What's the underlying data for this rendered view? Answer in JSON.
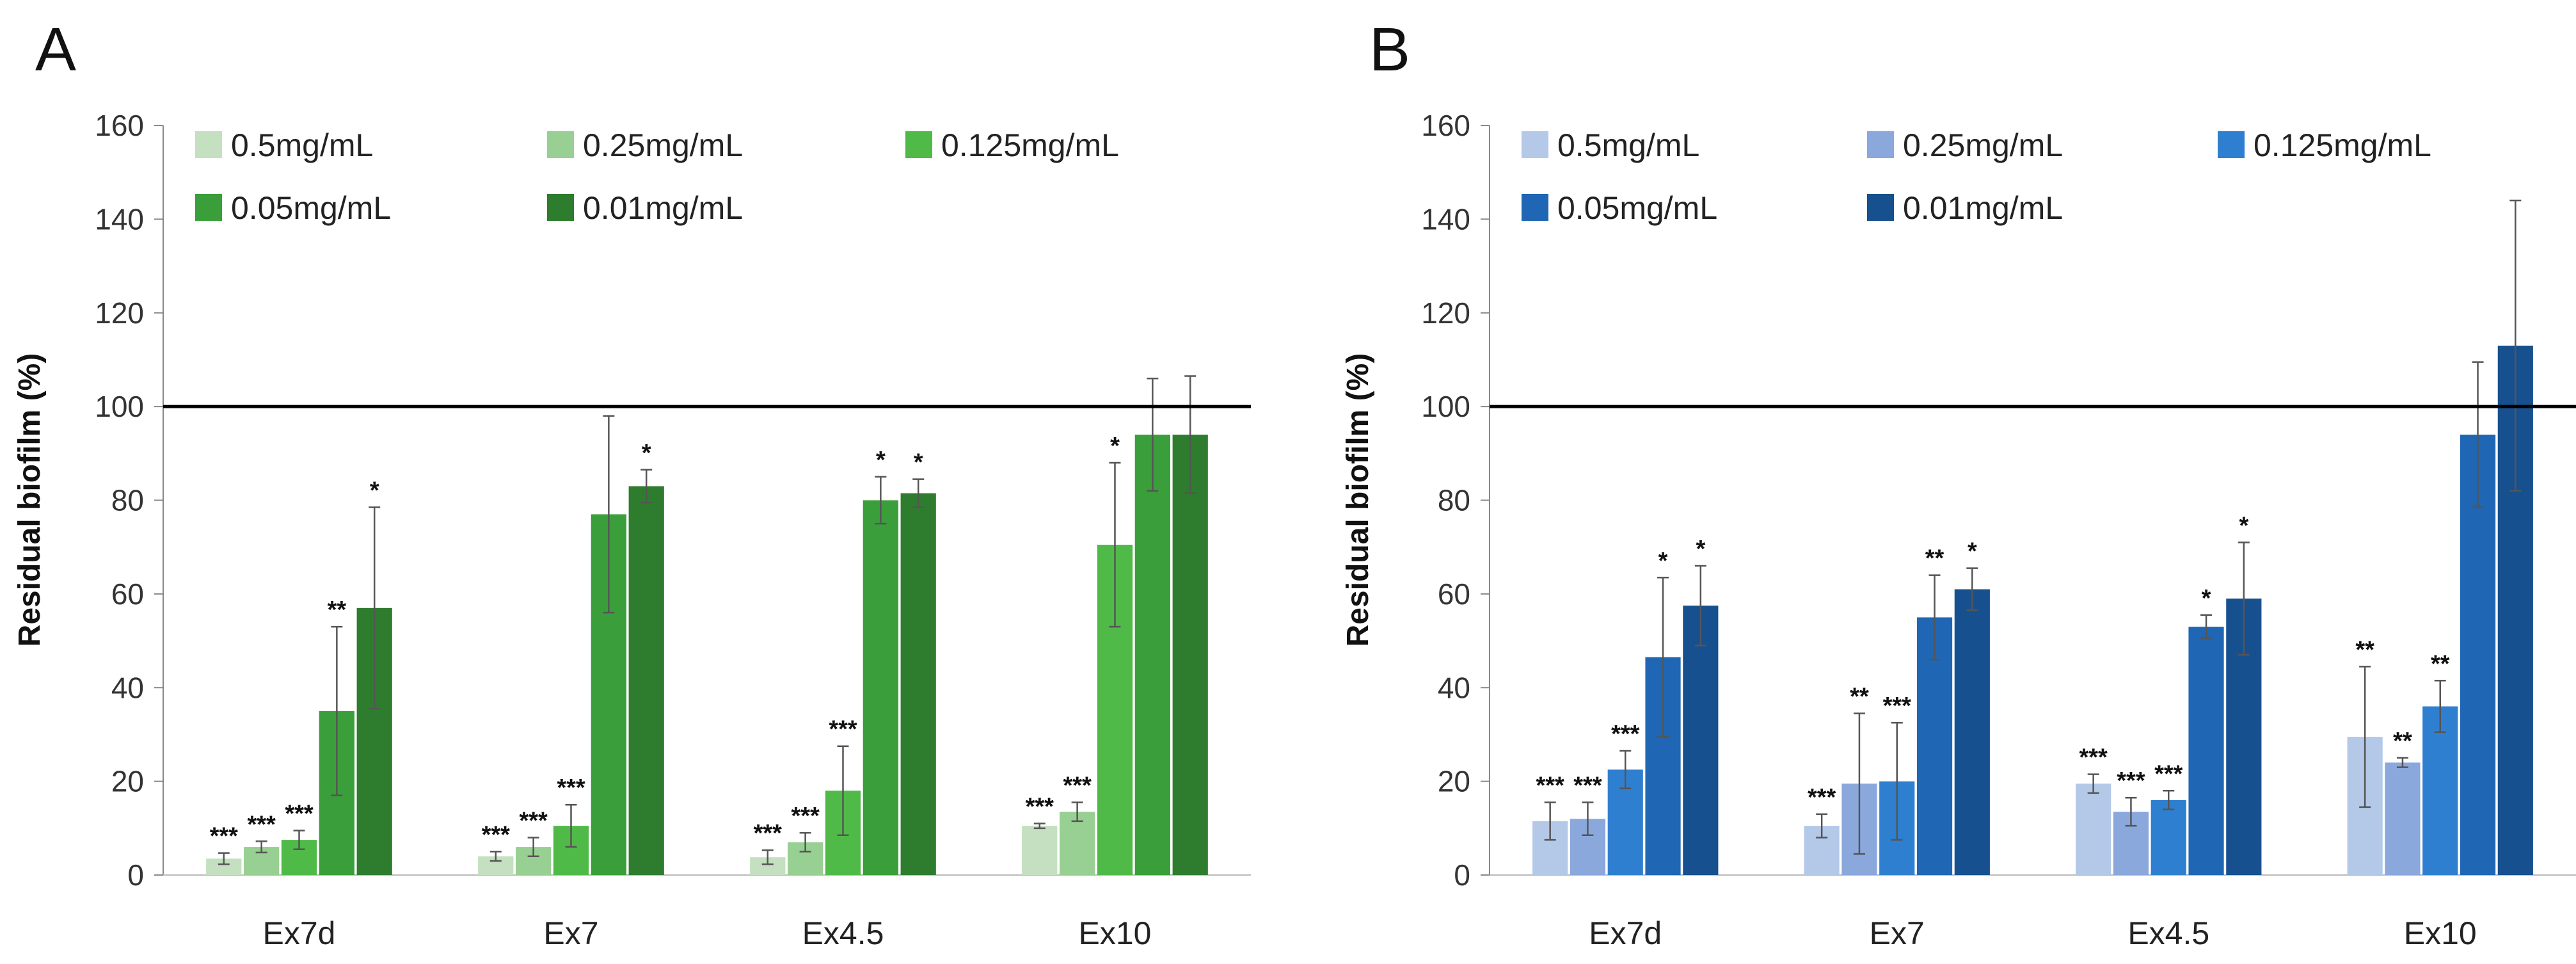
{
  "chart_data": [
    {
      "type": "bar",
      "panel_label": "A",
      "ylabel": "Residual biofilm (%)",
      "xlabel": "",
      "ylim": [
        0,
        160
      ],
      "yticks": [
        0,
        20,
        40,
        60,
        80,
        100,
        120,
        140,
        160
      ],
      "reference_line": 100,
      "legend_position": "top-left",
      "categories": [
        "Ex7d",
        "Ex7",
        "Ex4.5",
        "Ex10"
      ],
      "series": [
        {
          "name": "0.5mg/mL",
          "color": "#c4e0c0",
          "values": [
            3.5,
            4,
            3.8,
            10.5
          ],
          "errors": [
            1.2,
            1,
            1.5,
            0.5
          ],
          "significance": [
            "***",
            "***",
            "***",
            "***"
          ]
        },
        {
          "name": "0.25mg/mL",
          "color": "#98cf92",
          "values": [
            6,
            6,
            7,
            13.5
          ],
          "errors": [
            1.2,
            2,
            2,
            2
          ],
          "significance": [
            "***",
            "***",
            "***",
            "***"
          ]
        },
        {
          "name": "0.125mg/mL",
          "color": "#4fba48",
          "values": [
            7.5,
            10.5,
            18,
            70.5
          ],
          "errors": [
            2,
            4.5,
            9.5,
            17.5
          ],
          "significance": [
            "***",
            "***",
            "***",
            "*"
          ]
        },
        {
          "name": "0.05mg/mL",
          "color": "#3a9f3a",
          "values": [
            35,
            77,
            80,
            94
          ],
          "errors": [
            18,
            21,
            5,
            12
          ],
          "significance": [
            "**",
            "",
            "*",
            ""
          ]
        },
        {
          "name": "0.01mg/mL",
          "color": "#2e7d2e",
          "values": [
            57,
            83,
            81.5,
            94
          ],
          "errors": [
            21.5,
            3.5,
            3,
            12.5
          ],
          "significance": [
            "*",
            "*",
            "*",
            ""
          ]
        }
      ]
    },
    {
      "type": "bar",
      "panel_label": "B",
      "ylabel": "Residual biofilm (%)",
      "xlabel": "",
      "ylim": [
        0,
        160
      ],
      "yticks": [
        0,
        20,
        40,
        60,
        80,
        100,
        120,
        140,
        160
      ],
      "reference_line": 100,
      "legend_position": "top-left",
      "categories": [
        "Ex7d",
        "Ex7",
        "Ex4.5",
        "Ex10"
      ],
      "series": [
        {
          "name": "0.5mg/mL",
          "color": "#b4c8e8",
          "values": [
            11.5,
            10.5,
            19.5,
            29.5
          ],
          "errors": [
            4,
            2.5,
            2,
            15
          ],
          "significance": [
            "***",
            "***",
            "***",
            "**"
          ]
        },
        {
          "name": "0.25mg/mL",
          "color": "#8aa8dc",
          "values": [
            12,
            19.5,
            13.5,
            24
          ],
          "errors": [
            3.5,
            15,
            3,
            1
          ],
          "significance": [
            "***",
            "**",
            "***",
            "**"
          ]
        },
        {
          "name": "0.125mg/mL",
          "color": "#2f7fd0",
          "values": [
            22.5,
            20,
            16,
            36
          ],
          "errors": [
            4,
            12.5,
            2,
            5.5
          ],
          "significance": [
            "***",
            "***",
            "***",
            "**"
          ]
        },
        {
          "name": "0.05mg/mL",
          "color": "#1f66b4",
          "values": [
            46.5,
            55,
            53,
            94
          ],
          "errors": [
            17,
            9,
            2.5,
            15.5
          ],
          "significance": [
            "*",
            "**",
            "*",
            ""
          ]
        },
        {
          "name": "0.01mg/mL",
          "color": "#17508e",
          "values": [
            57.5,
            61,
            59,
            113
          ],
          "errors": [
            8.5,
            4.5,
            12,
            31
          ],
          "significance": [
            "*",
            "*",
            "*",
            ""
          ]
        }
      ]
    }
  ]
}
